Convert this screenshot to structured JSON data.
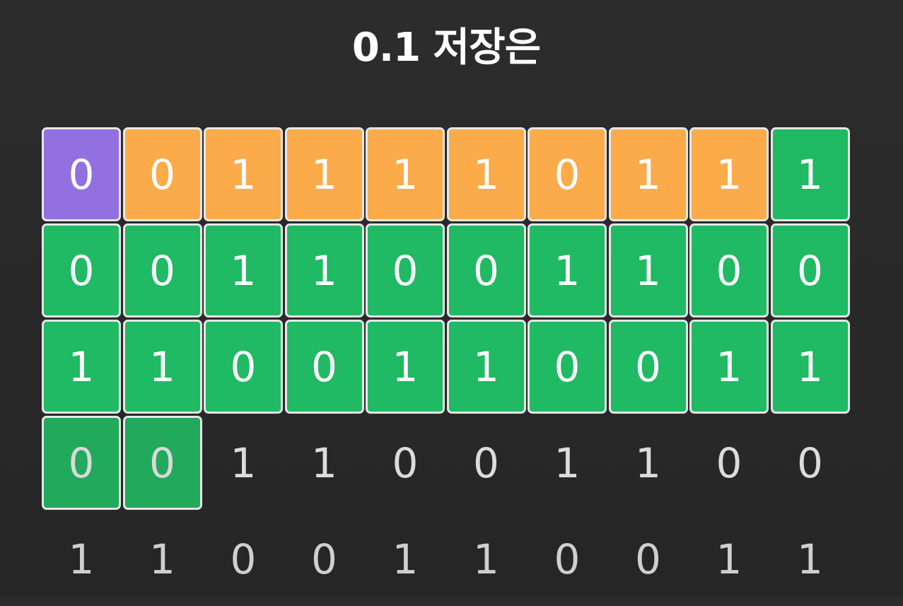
{
  "title": "0.1 저장은",
  "colors": {
    "background": "#2a2a2a",
    "sign": "#9270e0",
    "exponent": "#fbab4a",
    "mantissa": "#1fba63",
    "border": "#e6e6e6",
    "text": "#ffffff"
  },
  "rows": [
    {
      "bits": [
        "0",
        "0",
        "1",
        "1",
        "1",
        "1",
        "0",
        "1",
        "1",
        "1"
      ],
      "kinds": [
        "sign",
        "exp",
        "exp",
        "exp",
        "exp",
        "exp",
        "exp",
        "exp",
        "exp",
        "man"
      ]
    },
    {
      "bits": [
        "0",
        "0",
        "1",
        "1",
        "0",
        "0",
        "1",
        "1",
        "0",
        "0"
      ],
      "kinds": [
        "man",
        "man",
        "man",
        "man",
        "man",
        "man",
        "man",
        "man",
        "man",
        "man"
      ]
    },
    {
      "bits": [
        "1",
        "1",
        "0",
        "0",
        "1",
        "1",
        "0",
        "0",
        "1",
        "1"
      ],
      "kinds": [
        "man",
        "man",
        "man",
        "man",
        "man",
        "man",
        "man",
        "man",
        "man",
        "man"
      ]
    },
    {
      "bits": [
        "0",
        "0",
        "1",
        "1",
        "0",
        "0",
        "1",
        "1",
        "0",
        "0"
      ],
      "kinds": [
        "man-last",
        "man-last",
        "plain",
        "plain",
        "plain",
        "plain",
        "plain",
        "plain",
        "plain",
        "plain"
      ]
    },
    {
      "bits": [
        "1",
        "1",
        "0",
        "0",
        "1",
        "1",
        "0",
        "0",
        "1",
        "1"
      ],
      "kinds": [
        "faded",
        "faded",
        "faded",
        "faded",
        "faded",
        "faded",
        "faded",
        "faded",
        "faded",
        "faded"
      ]
    }
  ]
}
